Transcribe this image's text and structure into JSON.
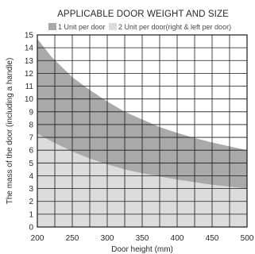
{
  "chart_data": {
    "type": "area",
    "title": "APPLICABLE DOOR WEIGHT AND SIZE",
    "xlabel": "Door height (mm)",
    "ylabel": "The mass of the door (including a handle)",
    "xlim": [
      200,
      500
    ],
    "ylim": [
      0,
      15
    ],
    "xticks": [
      200,
      250,
      300,
      350,
      400,
      450,
      500
    ],
    "yticks": [
      0,
      1,
      2,
      3,
      4,
      5,
      6,
      7,
      8,
      9,
      10,
      11,
      12,
      13,
      14,
      15
    ],
    "x_minor_step": 25,
    "grid": true,
    "legend_position": "top",
    "series": [
      {
        "name": "1 Unit per door",
        "color": "#a9a9a9",
        "x": [
          200,
          220,
          250,
          275,
          300,
          325,
          350,
          375,
          400,
          425,
          450,
          475,
          500
        ],
        "values": [
          14.7,
          13.3,
          11.7,
          10.7,
          9.8,
          9.0,
          8.4,
          7.8,
          7.35,
          6.95,
          6.6,
          6.3,
          6.0
        ]
      },
      {
        "name": "2 Unit per door(right & left per door)",
        "color": "#dcdcdc",
        "x": [
          200,
          220,
          250,
          275,
          300,
          325,
          350,
          375,
          400,
          425,
          450,
          475,
          500
        ],
        "values": [
          7.3,
          6.7,
          5.9,
          5.35,
          4.9,
          4.5,
          4.2,
          3.95,
          3.7,
          3.5,
          3.3,
          3.15,
          3.0
        ]
      }
    ]
  }
}
